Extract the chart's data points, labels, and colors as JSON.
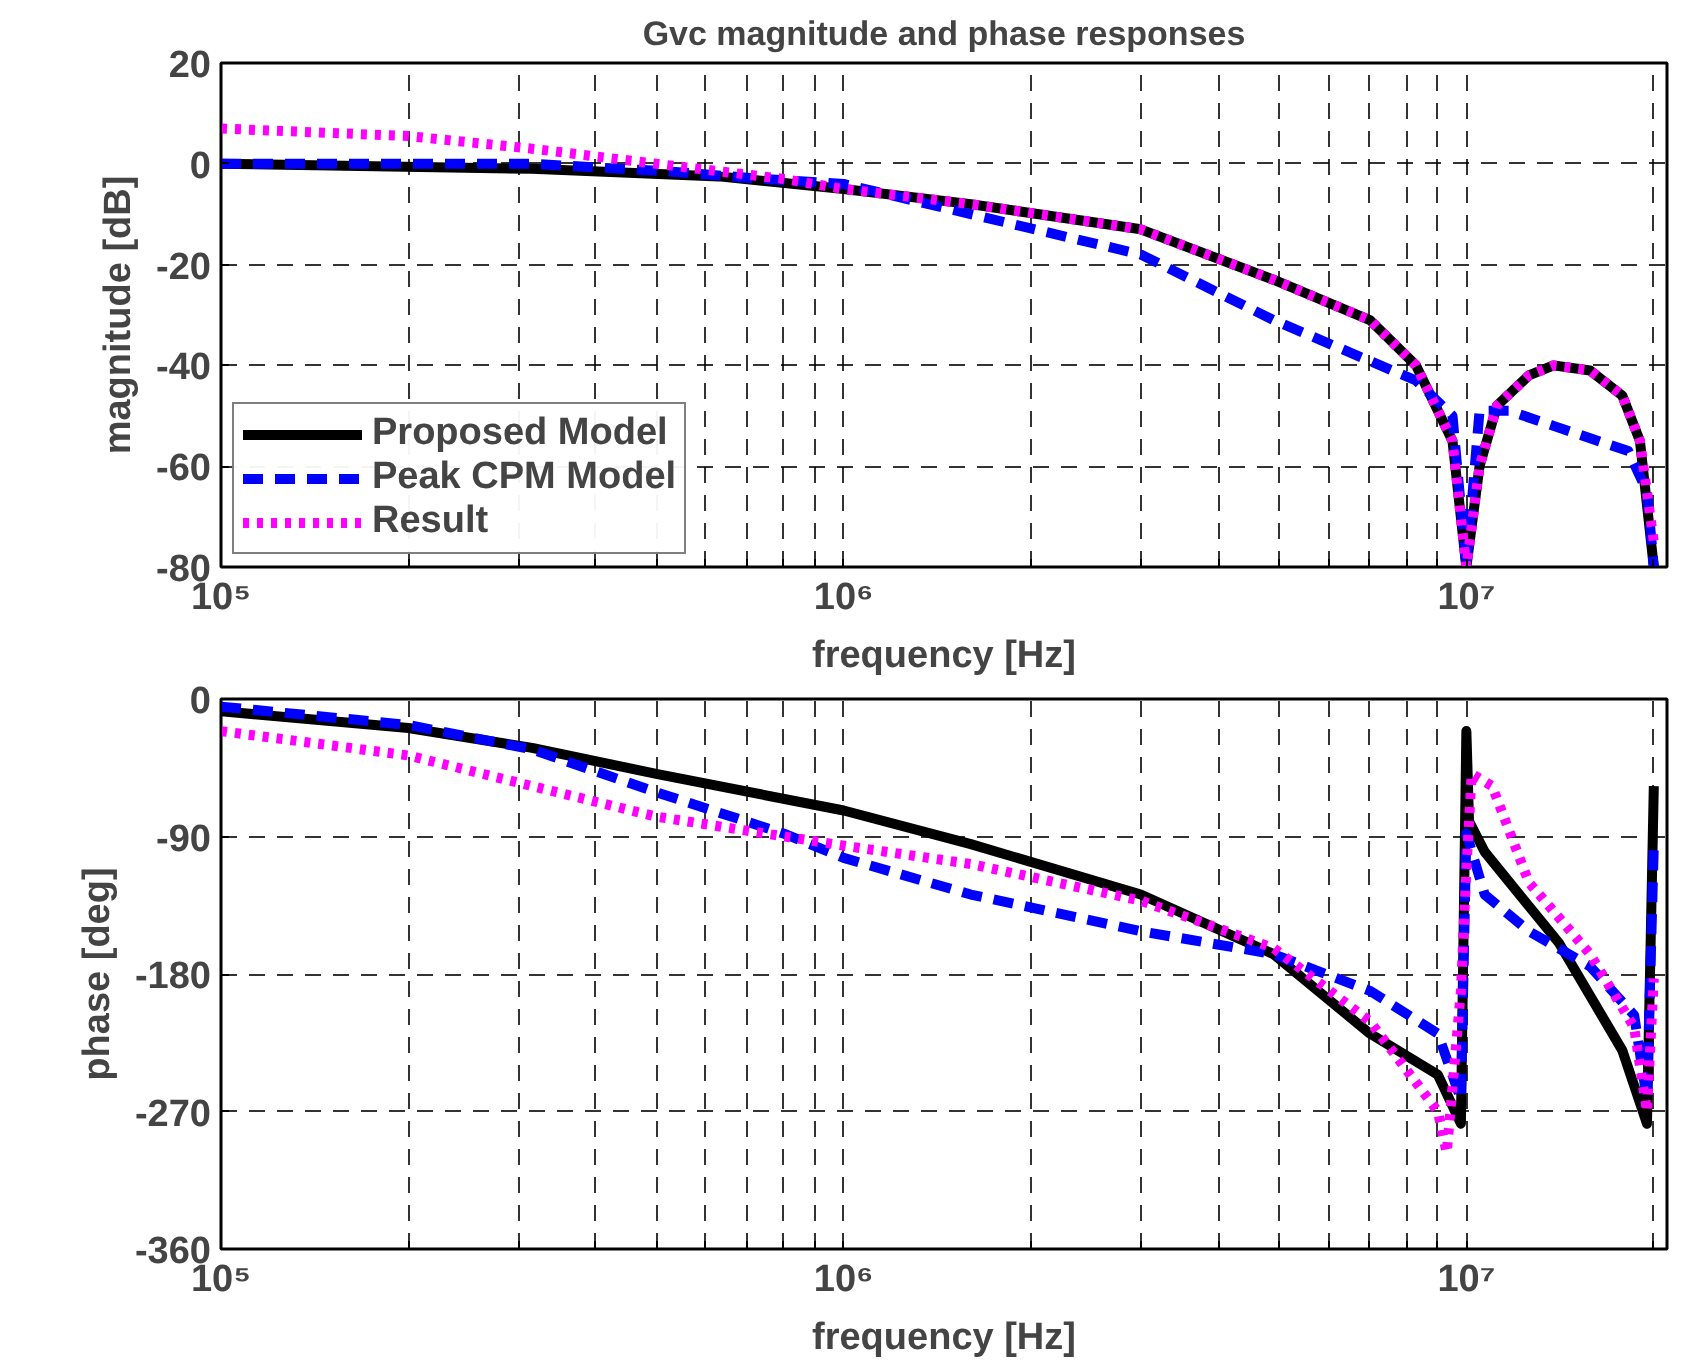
{
  "chart_data": [
    {
      "type": "line",
      "title": "Gvc magnitude and phase responses",
      "xlabel": "frequency [Hz]",
      "ylabel": "magnitude [dB]",
      "log": "x",
      "xlim": [
        100000.0,
        21000000.0
      ],
      "xticks": [
        {
          "value": 100000.0,
          "label": "10⁵"
        },
        {
          "value": 200000.0,
          "label": null
        },
        {
          "value": 300000.0,
          "label": null
        },
        {
          "value": 400000.0,
          "label": null
        },
        {
          "value": 500000.0,
          "label": null
        },
        {
          "value": 600000.0,
          "label": null
        },
        {
          "value": 700000.0,
          "label": null
        },
        {
          "value": 800000.0,
          "label": null
        },
        {
          "value": 900000.0,
          "label": null
        },
        {
          "value": 1000000.0,
          "label": "10⁶"
        },
        {
          "value": 2000000.0,
          "label": null
        },
        {
          "value": 3000000.0,
          "label": null
        },
        {
          "value": 4000000.0,
          "label": null
        },
        {
          "value": 5000000.0,
          "label": null
        },
        {
          "value": 6000000.0,
          "label": null
        },
        {
          "value": 7000000.0,
          "label": null
        },
        {
          "value": 8000000.0,
          "label": null
        },
        {
          "value": 9000000.0,
          "label": null
        },
        {
          "value": 10000000.0,
          "label": "10⁷"
        },
        {
          "value": 20000000.0,
          "label": null
        }
      ],
      "ylim": [
        -80,
        20
      ],
      "yticks": [
        -80,
        -60,
        -40,
        -20,
        0,
        20
      ],
      "grid": true,
      "legend": "bottom left",
      "series": [
        {
          "name": "Proposed Model",
          "color": "#000000",
          "line_style": "solid",
          "x": [
            100000.0,
            316000.0,
            630000.0,
            1000000.0,
            1600000.0,
            3000000.0,
            4900000.0,
            7000000.0,
            8300000.0,
            9500000.0,
            10000000.0,
            10500000.0,
            11200000.0,
            12600000.0,
            13800000.0,
            15800000.0,
            17800000.0,
            19000000.0,
            20000000.0
          ],
          "values": [
            0,
            -1,
            -2.5,
            -5,
            -8,
            -13,
            -23,
            -31,
            -40,
            -55,
            -80,
            -60,
            -48,
            -42,
            -40,
            -41,
            -46,
            -55,
            -80
          ]
        },
        {
          "name": "Peak CPM Model",
          "color": "#0000ff",
          "line_style": "dashed",
          "x": [
            100000.0,
            316000.0,
            520000.0,
            740000.0,
            1000000.0,
            3000000.0,
            4900000.0,
            8300000.0,
            9500000.0,
            10000000.0,
            10500000.0,
            11700000.0,
            13800000.0,
            18200000.0,
            19500000.0,
            20000000.0
          ],
          "values": [
            0,
            0,
            -1.5,
            -3,
            -4,
            -18,
            -31,
            -43,
            -50,
            -80,
            -49,
            -49,
            -52,
            -57,
            -65,
            -80
          ]
        },
        {
          "name": "Result",
          "color": "#ff00ff",
          "line_style": "dotted",
          "x": [
            100000.0,
            200000.0,
            316000.0,
            500000.0,
            800000.0,
            1000000.0,
            1600000.0,
            3000000.0,
            4900000.0,
            7000000.0,
            8300000.0,
            9500000.0,
            10000000.0,
            10500000.0,
            11200000.0,
            12600000.0,
            13800000.0,
            15800000.0,
            17800000.0,
            19000000.0,
            20000000.0
          ],
          "values": [
            7,
            5.5,
            3,
            0,
            -3,
            -5,
            -8,
            -13,
            -23,
            -31,
            -40,
            -55,
            -80,
            -60,
            -48,
            -42,
            -40,
            -41,
            -46,
            -55,
            -75
          ]
        }
      ]
    },
    {
      "type": "line",
      "xlabel": "frequency [Hz]",
      "ylabel": "phase [deg]",
      "log": "x",
      "xlim": [
        100000.0,
        21000000.0
      ],
      "xticks": [
        {
          "value": 100000.0,
          "label": "10⁵"
        },
        {
          "value": 200000.0,
          "label": null
        },
        {
          "value": 300000.0,
          "label": null
        },
        {
          "value": 400000.0,
          "label": null
        },
        {
          "value": 500000.0,
          "label": null
        },
        {
          "value": 600000.0,
          "label": null
        },
        {
          "value": 700000.0,
          "label": null
        },
        {
          "value": 800000.0,
          "label": null
        },
        {
          "value": 900000.0,
          "label": null
        },
        {
          "value": 1000000.0,
          "label": "10⁶"
        },
        {
          "value": 2000000.0,
          "label": null
        },
        {
          "value": 3000000.0,
          "label": null
        },
        {
          "value": 4000000.0,
          "label": null
        },
        {
          "value": 5000000.0,
          "label": null
        },
        {
          "value": 6000000.0,
          "label": null
        },
        {
          "value": 7000000.0,
          "label": null
        },
        {
          "value": 8000000.0,
          "label": null
        },
        {
          "value": 9000000.0,
          "label": null
        },
        {
          "value": 10000000.0,
          "label": "10⁷"
        },
        {
          "value": 20000000.0,
          "label": null
        }
      ],
      "ylim": [
        -360,
        0
      ],
      "yticks": [
        -360,
        -270,
        -180,
        -90,
        0
      ],
      "grid": true,
      "series": [
        {
          "color": "#000000",
          "line_style": "solid",
          "x": [
            100000.0,
            200000.0,
            316000.0,
            500000.0,
            1000000.0,
            1600000.0,
            3000000.0,
            4900000.0,
            7000000.0,
            9000000.0,
            9800000.0,
            10000000.0,
            10100000.0,
            10700000.0,
            14100000.0,
            17800000.0,
            19500000.0,
            20000000.0
          ],
          "values": [
            -8,
            -19,
            -32,
            -49,
            -73,
            -95,
            -128,
            -167,
            -219,
            -246,
            -278,
            -21,
            -80,
            -100,
            -160,
            -230,
            -278,
            -57
          ]
        },
        {
          "color": "#0000ff",
          "line_style": "dashed",
          "x": [
            100000.0,
            200000.0,
            316000.0,
            500000.0,
            800000.0,
            1000000.0,
            1600000.0,
            3000000.0,
            4900000.0,
            7000000.0,
            9000000.0,
            9800000.0,
            10000000.0,
            10700000.0,
            12600000.0,
            15800000.0,
            18600000.0,
            19500000.0,
            20000000.0
          ],
          "values": [
            -5,
            -17,
            -33,
            -61,
            -88,
            -104,
            -128,
            -152,
            -167,
            -191,
            -219,
            -262,
            -88,
            -128,
            -152,
            -175,
            -207,
            -262,
            -96
          ]
        },
        {
          "color": "#ff00ff",
          "line_style": "dotted",
          "x": [
            100000.0,
            200000.0,
            316000.0,
            500000.0,
            1000000.0,
            1600000.0,
            3000000.0,
            4900000.0,
            7000000.0,
            9000000.0,
            9300000.0,
            9800000.0,
            10000000.0,
            10200000.0,
            11000000.0,
            12600000.0,
            15800000.0,
            18600000.0,
            19500000.0,
            20000000.0
          ],
          "values": [
            -21,
            -37,
            -57,
            -77,
            -96,
            -108,
            -132,
            -163,
            -211,
            -270,
            -297,
            -191,
            -112,
            -49,
            -57,
            -120,
            -167,
            -215,
            -270,
            -183
          ]
        }
      ]
    }
  ]
}
